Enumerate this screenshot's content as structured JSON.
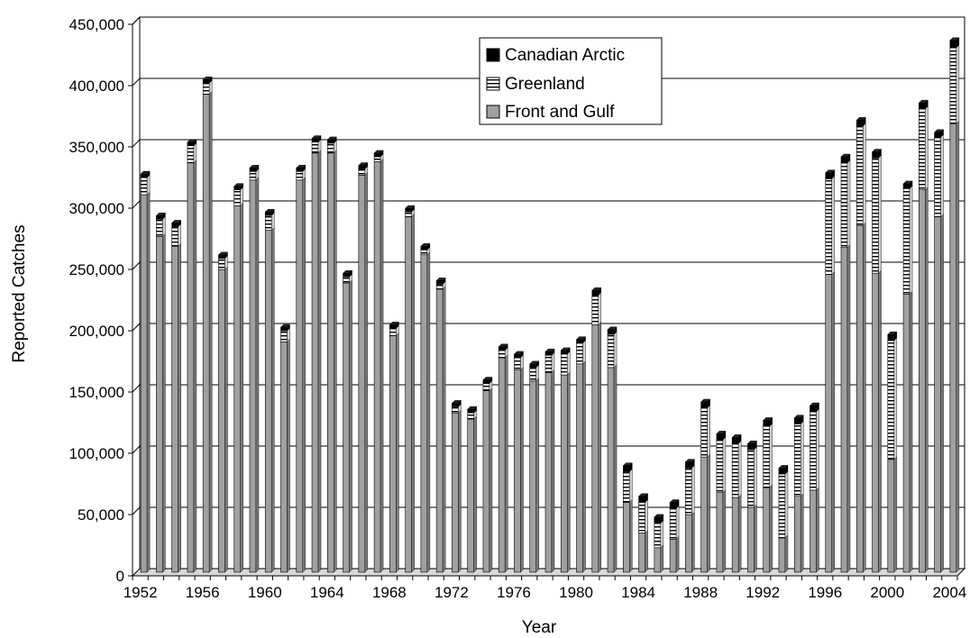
{
  "chart_data": {
    "type": "bar",
    "stacked": true,
    "three_d": true,
    "title": "",
    "xlabel": "Year",
    "ylabel": "Reported Catches",
    "ylim": [
      0,
      450000
    ],
    "yticks": [
      "0",
      "50,000",
      "100,000",
      "150,000",
      "200,000",
      "250,000",
      "300,000",
      "350,000",
      "400,000",
      "450,000"
    ],
    "ytick_values": [
      0,
      50000,
      100000,
      150000,
      200000,
      250000,
      300000,
      350000,
      400000,
      450000
    ],
    "xtick_labels": [
      "1952",
      "1956",
      "1960",
      "1964",
      "1968",
      "1972",
      "1976",
      "1980",
      "1984",
      "1988",
      "1992",
      "1996",
      "2000",
      "2004"
    ],
    "grid": "horizontal",
    "legend_position": "top-center",
    "categories": [
      "1952",
      "1953",
      "1954",
      "1955",
      "1956",
      "1957",
      "1958",
      "1959",
      "1960",
      "1961",
      "1962",
      "1963",
      "1964",
      "1965",
      "1966",
      "1967",
      "1968",
      "1969",
      "1970",
      "1971",
      "1972",
      "1973",
      "1974",
      "1975",
      "1976",
      "1977",
      "1978",
      "1979",
      "1980",
      "1981",
      "1982",
      "1983",
      "1984",
      "1985",
      "1986",
      "1987",
      "1988",
      "1989",
      "1990",
      "1991",
      "1992",
      "1993",
      "1994",
      "1995",
      "1996",
      "1997",
      "1998",
      "1999",
      "2000",
      "2001",
      "2002",
      "2003",
      "2004"
    ],
    "series": [
      {
        "name": "Front and Gulf",
        "pattern": "solid-gray",
        "color": "#a0a0a0",
        "values": [
          308000,
          274000,
          266000,
          334000,
          390000,
          247000,
          299000,
          320000,
          279000,
          188000,
          320000,
          342000,
          342000,
          236000,
          324000,
          335000,
          193000,
          290000,
          259000,
          231000,
          130000,
          125000,
          148000,
          175000,
          165000,
          156000,
          163000,
          161000,
          170000,
          202000,
          167000,
          57000,
          32000,
          20000,
          27000,
          47000,
          94000,
          65000,
          61000,
          53000,
          69000,
          28000,
          62000,
          67000,
          243000,
          265000,
          283000,
          244000,
          92000,
          227000,
          312000,
          290000,
          366000
        ]
      },
      {
        "name": "Greenland",
        "pattern": "horizontal-stripes",
        "color": "#ffffff",
        "values": [
          14000,
          14000,
          16000,
          14000,
          9000,
          9000,
          13000,
          7000,
          12000,
          9000,
          7000,
          9000,
          8000,
          5000,
          5000,
          4000,
          6000,
          4000,
          4000,
          4000,
          5000,
          5000,
          6000,
          6000,
          10000,
          11000,
          14000,
          17000,
          17000,
          24000,
          27000,
          25000,
          25000,
          20000,
          25000,
          38000,
          40000,
          43000,
          44000,
          47000,
          50000,
          52000,
          59000,
          64000,
          78000,
          69000,
          81000,
          94000,
          97000,
          86000,
          66000,
          65000,
          62000
        ]
      },
      {
        "name": "Canadian Arctic",
        "pattern": "solid-black",
        "color": "#000000",
        "values": [
          3000,
          3000,
          3000,
          3000,
          3000,
          3000,
          3000,
          3000,
          3000,
          3000,
          3000,
          3000,
          3000,
          3000,
          3000,
          3000,
          3000,
          3000,
          3000,
          3000,
          3000,
          3000,
          3000,
          3000,
          3000,
          3000,
          3000,
          3000,
          3000,
          4000,
          4000,
          5000,
          5000,
          5000,
          5000,
          5000,
          5000,
          5000,
          5000,
          5000,
          5000,
          5000,
          5000,
          5000,
          5000,
          5000,
          5000,
          5000,
          5000,
          4000,
          5000,
          4000,
          6000
        ]
      }
    ]
  }
}
